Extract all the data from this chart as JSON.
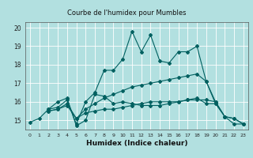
{
  "title": "Courbe de l'humidex pour Mumbles",
  "xlabel": "Humidex (Indice chaleur)",
  "background_color": "#b2e0e0",
  "grid_color": "#ffffff",
  "line_color": "#006060",
  "xlim": [
    -0.5,
    23.5
  ],
  "ylim": [
    14.5,
    20.3
  ],
  "yticks": [
    15,
    16,
    17,
    18,
    19,
    20
  ],
  "xticks": [
    0,
    1,
    2,
    3,
    4,
    5,
    6,
    7,
    8,
    9,
    10,
    11,
    12,
    13,
    14,
    15,
    16,
    17,
    18,
    19,
    20,
    21,
    22,
    23
  ],
  "series1_x": [
    0,
    1,
    2,
    3,
    4,
    5,
    6,
    7,
    8,
    9,
    10,
    11,
    12,
    13,
    14,
    15,
    16,
    17,
    18,
    19,
    20,
    21,
    22,
    23
  ],
  "series1_y": [
    14.9,
    15.1,
    15.6,
    16.0,
    16.2,
    14.7,
    15.0,
    16.4,
    16.3,
    15.9,
    16.0,
    15.9,
    15.8,
    15.8,
    15.8,
    15.9,
    16.0,
    16.1,
    16.2,
    15.9,
    15.9,
    15.2,
    14.8,
    14.8
  ],
  "series2_x": [
    2,
    3,
    4,
    5,
    6,
    7,
    8,
    9,
    10,
    11,
    12,
    13,
    14,
    15,
    16,
    17,
    18,
    19,
    20
  ],
  "series2_y": [
    15.6,
    15.7,
    16.1,
    14.8,
    16.0,
    16.5,
    17.7,
    17.7,
    18.3,
    19.8,
    18.7,
    19.6,
    18.2,
    18.1,
    18.7,
    18.7,
    19.0,
    17.1,
    15.9
  ],
  "series3_x": [
    2,
    3,
    4,
    5,
    6,
    7,
    8,
    9,
    10,
    11,
    12,
    13,
    14,
    15,
    16,
    17,
    18,
    19,
    20,
    21,
    22,
    23
  ],
  "series3_y": [
    15.5,
    15.6,
    15.9,
    15.1,
    15.6,
    15.9,
    16.2,
    16.4,
    16.6,
    16.8,
    16.9,
    17.0,
    17.1,
    17.2,
    17.3,
    17.4,
    17.5,
    17.1,
    16.0,
    15.2,
    15.1,
    14.8
  ],
  "series4_x": [
    2,
    3,
    4,
    5,
    6,
    7,
    8,
    9,
    10,
    11,
    12,
    13,
    14,
    15,
    16,
    17,
    18,
    19,
    20,
    21,
    22,
    23
  ],
  "series4_y": [
    15.5,
    15.6,
    15.8,
    15.1,
    15.4,
    15.5,
    15.6,
    15.6,
    15.7,
    15.8,
    15.9,
    16.0,
    16.0,
    16.0,
    16.0,
    16.1,
    16.1,
    16.1,
    16.0,
    15.2,
    15.1,
    14.8
  ]
}
